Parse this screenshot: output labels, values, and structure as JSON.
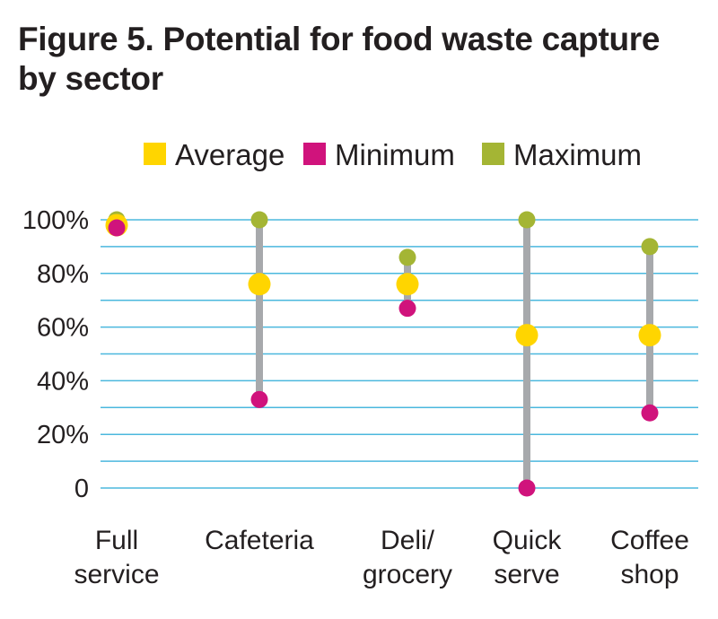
{
  "chart_data": {
    "type": "dot-range",
    "title_lines": [
      "Figure 5. Potential for food waste capture",
      "by sector"
    ],
    "legend": [
      {
        "key": "average",
        "label": "Average",
        "color": "#ffd500"
      },
      {
        "key": "minimum",
        "label": "Minimum",
        "color": "#d0137c"
      },
      {
        "key": "maximum",
        "label": "Maximum",
        "color": "#a4b534"
      }
    ],
    "y_ticks": [
      {
        "value": 100,
        "label": "100%"
      },
      {
        "value": 80,
        "label": "80%"
      },
      {
        "value": 60,
        "label": "60%"
      },
      {
        "value": 40,
        "label": "40%"
      },
      {
        "value": 20,
        "label": "20%"
      },
      {
        "value": 0,
        "label": "0"
      }
    ],
    "ylim": [
      0,
      100
    ],
    "categories": [
      {
        "lines": [
          "Full",
          "service"
        ],
        "minimum": 97,
        "average": 98,
        "maximum": 100
      },
      {
        "lines": [
          "Cafeteria"
        ],
        "minimum": 33,
        "average": 76,
        "maximum": 100
      },
      {
        "lines": [
          "Deli/",
          "grocery"
        ],
        "minimum": 67,
        "average": 76,
        "maximum": 86
      },
      {
        "lines": [
          "Quick",
          "serve"
        ],
        "minimum": 0,
        "average": 57,
        "maximum": 100
      },
      {
        "lines": [
          "Coffee",
          "shop"
        ],
        "minimum": 28,
        "average": 57,
        "maximum": 90
      }
    ],
    "colors": {
      "gridline": "#4bb8de",
      "range_line": "#a7a9ac",
      "text": "#231f20"
    }
  }
}
